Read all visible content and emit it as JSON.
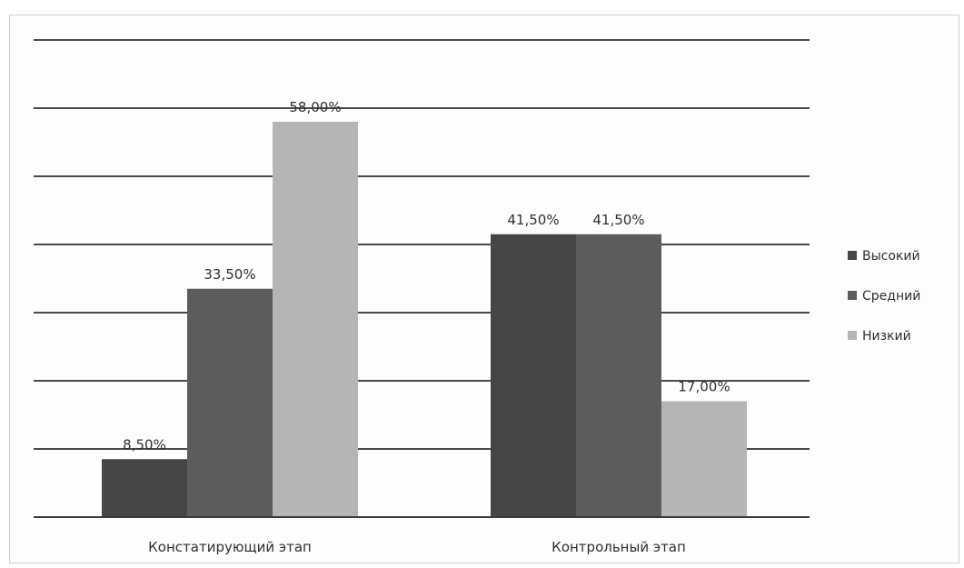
{
  "chart_data": {
    "type": "bar",
    "categories": [
      "Констатирующий этап",
      "Контрольный этап"
    ],
    "series": [
      {
        "name": "Высокий",
        "values": [
          8.5,
          41.5
        ],
        "labels": [
          "8,50%",
          "41,50%"
        ],
        "color": "#454545"
      },
      {
        "name": "Средний",
        "values": [
          33.5,
          41.5
        ],
        "labels": [
          "33,50%",
          "41,50%"
        ],
        "color": "#5c5c5c"
      },
      {
        "name": "Низкий",
        "values": [
          58.0,
          17.0
        ],
        "labels": [
          "58,00%",
          "17,00%"
        ],
        "color": "#b5b5b5"
      }
    ],
    "ylim": [
      0,
      70
    ],
    "y_tick_step": 10,
    "y_tick_labels_shown": false,
    "grid": true,
    "legend_position": "right"
  }
}
